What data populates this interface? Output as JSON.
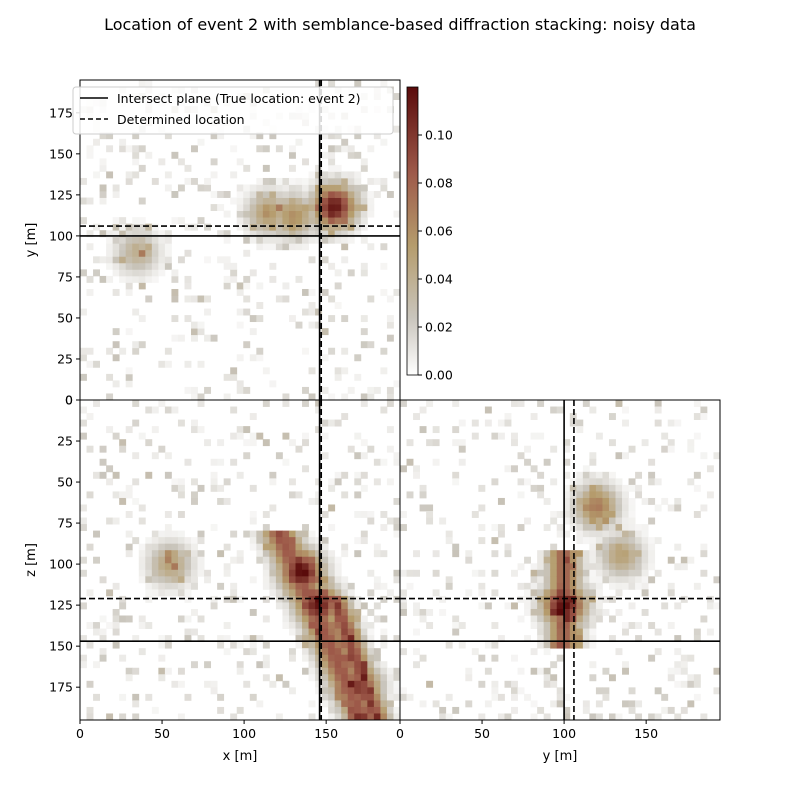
{
  "title": "Location of event 2 with semblance-based diffraction stacking: noisy data",
  "colors": {
    "low": "#ffffff",
    "mid_grey": "#c9c5bc",
    "mid_tan": "#b59c6c",
    "high_brown": "#9e5a4a",
    "max_dark": "#5a0b0b",
    "line": "#000000"
  },
  "chart_data": [
    {
      "type": "heatmap",
      "panel": "xy-plane",
      "xlabel": "",
      "ylabel": "y [m]",
      "xlim": [
        0,
        195
      ],
      "ylim": [
        0,
        195
      ],
      "yticks": [
        "0",
        "25",
        "50",
        "75",
        "100",
        "125",
        "150",
        "175"
      ],
      "true_location": {
        "x": 146,
        "y": 100
      },
      "determined_location": {
        "x": 147,
        "y": 106
      },
      "hotspots": [
        {
          "x": 155,
          "y": 118,
          "value": 0.115
        },
        {
          "x": 130,
          "y": 112,
          "value": 0.06
        },
        {
          "x": 115,
          "y": 114,
          "value": 0.055
        },
        {
          "x": 35,
          "y": 90,
          "value": 0.04
        }
      ]
    },
    {
      "type": "heatmap",
      "panel": "xz-plane",
      "xlabel": "x [m]",
      "ylabel": "z [m]",
      "xlim": [
        0,
        195
      ],
      "ylim": [
        195,
        0
      ],
      "xticks": [
        "0",
        "50",
        "100",
        "150"
      ],
      "yticks": [
        "0",
        "25",
        "50",
        "75",
        "100",
        "125",
        "150",
        "175"
      ],
      "true_location": {
        "x": 146,
        "z": 147
      },
      "determined_location": {
        "x": 147,
        "z": 121
      },
      "hotspots": [
        {
          "x": 135,
          "z": 105,
          "value": 0.12
        },
        {
          "x": 145,
          "z": 125,
          "value": 0.115
        },
        {
          "x": 170,
          "z": 175,
          "value": 0.1
        },
        {
          "x": 55,
          "z": 100,
          "value": 0.05
        }
      ]
    },
    {
      "type": "heatmap",
      "panel": "yz-plane",
      "xlabel": "y [m]",
      "ylabel": "",
      "xlim": [
        0,
        195
      ],
      "ylim": [
        195,
        0
      ],
      "xticks": [
        "0",
        "50",
        "100",
        "150"
      ],
      "true_location": {
        "y": 100,
        "z": 147
      },
      "determined_location": {
        "y": 106,
        "z": 121
      },
      "hotspots": [
        {
          "y": 100,
          "z": 125,
          "value": 0.12
        },
        {
          "y": 120,
          "z": 65,
          "value": 0.07
        },
        {
          "y": 135,
          "z": 95,
          "value": 0.05
        }
      ]
    }
  ],
  "colorbar": {
    "min": 0,
    "max": 0.12,
    "ticks": [
      "0.00",
      "0.02",
      "0.04",
      "0.06",
      "0.08",
      "0.10"
    ],
    "tick_values": [
      0,
      0.02,
      0.04,
      0.06,
      0.08,
      0.1
    ]
  },
  "legend": {
    "placement": "top-left of xy panel",
    "items": [
      {
        "label": "Intersect plane (True location: event 2)",
        "style": "solid"
      },
      {
        "label": "Determined location",
        "style": "dashed"
      }
    ]
  }
}
